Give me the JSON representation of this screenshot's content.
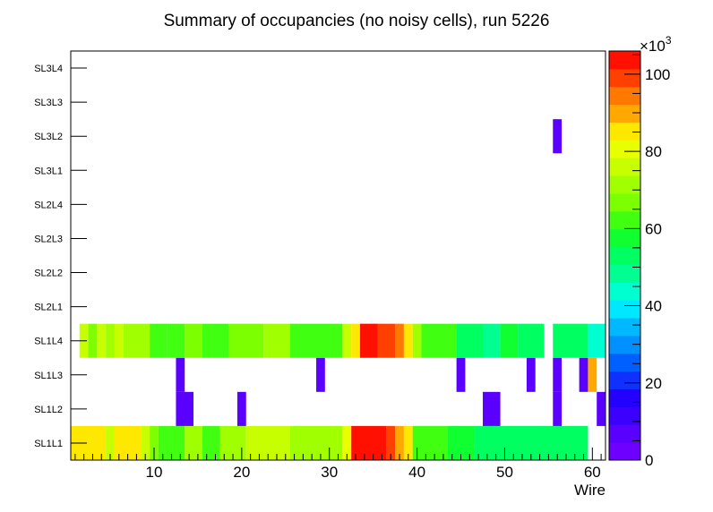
{
  "chart_data": {
    "type": "heatmap",
    "title": "Summary of occupancies (no noisy cells), run 5226",
    "xlabel": "Wire",
    "ylabel": "",
    "xlim": [
      0.5,
      61.5
    ],
    "x_ticks": [
      10,
      20,
      30,
      40,
      50,
      60
    ],
    "y_categories": [
      "SL1L1",
      "SL1L2",
      "SL1L3",
      "SL1L4",
      "SL2L1",
      "SL2L2",
      "SL2L3",
      "SL2L4",
      "SL3L1",
      "SL3L2",
      "SL3L3",
      "SL3L4"
    ],
    "z_multiplier_label": "×10",
    "z_multiplier_exp": "3",
    "z_units_note": "values in thousands",
    "zlim": [
      0,
      106
    ],
    "z_ticks": [
      0,
      20,
      40,
      60,
      80,
      100
    ],
    "palette": [
      "#6e00ff",
      "#5a00ff",
      "#3c00ff",
      "#2400ff",
      "#1030ff",
      "#0060ff",
      "#0090ff",
      "#00b8ff",
      "#00e8ff",
      "#00ffd0",
      "#00ff90",
      "#00ff60",
      "#10ff30",
      "#40ff10",
      "#7cff00",
      "#a0ff00",
      "#c8ff00",
      "#e8ff00",
      "#ffe800",
      "#ffa800",
      "#ff7800",
      "#ff4000",
      "#ff1000"
    ],
    "rows": {
      "SL1L1": [
        {
          "from": 1,
          "to": 4,
          "v": 84
        },
        {
          "from": 5,
          "to": 5,
          "v": 78
        },
        {
          "from": 6,
          "to": 8,
          "v": 84
        },
        {
          "from": 9,
          "to": 9,
          "v": 74
        },
        {
          "from": 10,
          "to": 10,
          "v": 68
        },
        {
          "from": 11,
          "to": 13,
          "v": 62
        },
        {
          "from": 14,
          "to": 15,
          "v": 70
        },
        {
          "from": 16,
          "to": 17,
          "v": 64
        },
        {
          "from": 18,
          "to": 20,
          "v": 72
        },
        {
          "from": 21,
          "to": 25,
          "v": 76
        },
        {
          "from": 26,
          "to": 31,
          "v": 72
        },
        {
          "from": 32,
          "to": 32,
          "v": 80
        },
        {
          "from": 33,
          "to": 36,
          "v": 106
        },
        {
          "from": 37,
          "to": 37,
          "v": 98
        },
        {
          "from": 38,
          "to": 38,
          "v": 92
        },
        {
          "from": 39,
          "to": 39,
          "v": 84
        },
        {
          "from": 40,
          "to": 43,
          "v": 62
        },
        {
          "from": 44,
          "to": 46,
          "v": 58
        },
        {
          "from": 47,
          "to": 59,
          "v": 52
        },
        {
          "from": 60,
          "to": 60,
          "v": 0
        }
      ],
      "SL1L2": [
        {
          "from": 13,
          "to": 14,
          "v": 5
        },
        {
          "from": 20,
          "to": 20,
          "v": 5
        },
        {
          "from": 48,
          "to": 49,
          "v": 5
        },
        {
          "from": 56,
          "to": 56,
          "v": 5
        },
        {
          "from": 61,
          "to": 61,
          "v": 5
        }
      ],
      "SL1L3": [
        {
          "from": 13,
          "to": 13,
          "v": 5
        },
        {
          "from": 29,
          "to": 29,
          "v": 5
        },
        {
          "from": 45,
          "to": 45,
          "v": 5
        },
        {
          "from": 53,
          "to": 53,
          "v": 5
        },
        {
          "from": 56,
          "to": 56,
          "v": 5
        },
        {
          "from": 59,
          "to": 59,
          "v": 5
        },
        {
          "from": 60,
          "to": 60,
          "v": 92
        }
      ],
      "SL1L4": [
        {
          "from": 2,
          "to": 2,
          "v": 76
        },
        {
          "from": 3,
          "to": 3,
          "v": 68
        },
        {
          "from": 4,
          "to": 4,
          "v": 76
        },
        {
          "from": 5,
          "to": 5,
          "v": 70
        },
        {
          "from": 6,
          "to": 6,
          "v": 76
        },
        {
          "from": 7,
          "to": 9,
          "v": 72
        },
        {
          "from": 10,
          "to": 11,
          "v": 64
        },
        {
          "from": 12,
          "to": 13,
          "v": 60
        },
        {
          "from": 14,
          "to": 15,
          "v": 66
        },
        {
          "from": 16,
          "to": 18,
          "v": 62
        },
        {
          "from": 19,
          "to": 22,
          "v": 66
        },
        {
          "from": 23,
          "to": 25,
          "v": 72
        },
        {
          "from": 26,
          "to": 31,
          "v": 64
        },
        {
          "from": 32,
          "to": 32,
          "v": 74
        },
        {
          "from": 33,
          "to": 33,
          "v": 84
        },
        {
          "from": 34,
          "to": 35,
          "v": 104
        },
        {
          "from": 36,
          "to": 37,
          "v": 100
        },
        {
          "from": 38,
          "to": 38,
          "v": 94
        },
        {
          "from": 39,
          "to": 39,
          "v": 84
        },
        {
          "from": 40,
          "to": 40,
          "v": 70
        },
        {
          "from": 41,
          "to": 44,
          "v": 60
        },
        {
          "from": 45,
          "to": 47,
          "v": 54
        },
        {
          "from": 48,
          "to": 49,
          "v": 50
        },
        {
          "from": 50,
          "to": 51,
          "v": 56
        },
        {
          "from": 52,
          "to": 54,
          "v": 52
        },
        {
          "from": 56,
          "to": 59,
          "v": 52
        },
        {
          "from": 60,
          "to": 61,
          "v": 44
        }
      ],
      "SL2L1": [],
      "SL2L2": [],
      "SL2L3": [],
      "SL2L4": [],
      "SL3L1": [],
      "SL3L2": [
        {
          "from": 56,
          "to": 56,
          "v": 5
        }
      ],
      "SL3L3": [],
      "SL3L4": []
    }
  }
}
